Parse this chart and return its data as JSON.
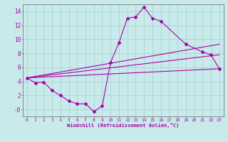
{
  "xlabel": "Windchill (Refroidissement éolien,°C)",
  "bg_color": "#c8eaea",
  "line_color": "#aa00aa",
  "grid_color": "#aad4d4",
  "spine_color": "#888888",
  "xlim": [
    -0.5,
    23.5
  ],
  "ylim": [
    -1.0,
    15.0
  ],
  "xticks": [
    0,
    1,
    2,
    3,
    4,
    5,
    6,
    7,
    8,
    9,
    10,
    11,
    12,
    13,
    14,
    15,
    16,
    17,
    18,
    19,
    20,
    21,
    22,
    23
  ],
  "yticks": [
    0,
    2,
    4,
    6,
    8,
    10,
    12,
    14
  ],
  "ytick_labels": [
    "-0",
    "2",
    "4",
    "6",
    "8",
    "10",
    "12",
    "14"
  ],
  "zigzag_x": [
    0,
    1,
    2,
    3,
    4,
    5,
    6,
    7,
    8,
    9,
    10,
    11,
    12,
    13,
    14,
    15,
    16,
    19,
    21,
    22,
    23
  ],
  "zigzag_y": [
    4.5,
    3.8,
    3.9,
    2.7,
    2.0,
    1.2,
    0.8,
    0.8,
    -0.3,
    0.5,
    6.7,
    9.5,
    13.0,
    13.2,
    14.6,
    13.0,
    12.6,
    9.3,
    8.2,
    7.8,
    5.8
  ],
  "straight_lines": [
    {
      "x": [
        0,
        23
      ],
      "y": [
        4.5,
        9.3
      ]
    },
    {
      "x": [
        0,
        23
      ],
      "y": [
        4.5,
        7.8
      ]
    },
    {
      "x": [
        0,
        23
      ],
      "y": [
        4.5,
        5.8
      ]
    }
  ]
}
